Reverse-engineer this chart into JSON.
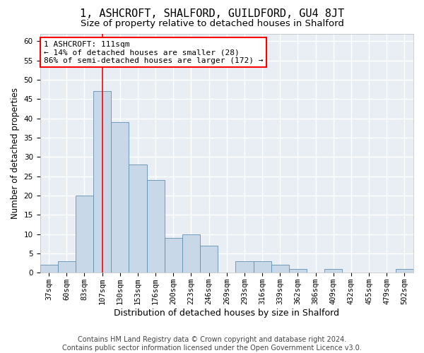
{
  "title": "1, ASHCROFT, SHALFORD, GUILDFORD, GU4 8JT",
  "subtitle": "Size of property relative to detached houses in Shalford",
  "xlabel": "Distribution of detached houses by size in Shalford",
  "ylabel": "Number of detached properties",
  "bar_color": "#c8d8e8",
  "bar_edge_color": "#6090b0",
  "background_color": "#e8eef4",
  "grid_color": "white",
  "categories": [
    "37sqm",
    "60sqm",
    "83sqm",
    "107sqm",
    "130sqm",
    "153sqm",
    "176sqm",
    "200sqm",
    "223sqm",
    "246sqm",
    "269sqm",
    "293sqm",
    "316sqm",
    "339sqm",
    "362sqm",
    "386sqm",
    "409sqm",
    "432sqm",
    "455sqm",
    "479sqm",
    "502sqm"
  ],
  "values": [
    2,
    3,
    20,
    47,
    39,
    28,
    24,
    9,
    10,
    7,
    0,
    3,
    3,
    2,
    1,
    0,
    1,
    0,
    0,
    0,
    1
  ],
  "ylim": [
    0,
    62
  ],
  "yticks": [
    0,
    5,
    10,
    15,
    20,
    25,
    30,
    35,
    40,
    45,
    50,
    55,
    60
  ],
  "marker_bin_index": 3,
  "annotation_line1": "1 ASHCROFT: 111sqm",
  "annotation_line2": "← 14% of detached houses are smaller (28)",
  "annotation_line3": "86% of semi-detached houses are larger (172) →",
  "annotation_box_color": "white",
  "annotation_border_color": "red",
  "footer_line1": "Contains HM Land Registry data © Crown copyright and database right 2024.",
  "footer_line2": "Contains public sector information licensed under the Open Government Licence v3.0.",
  "title_fontsize": 11,
  "subtitle_fontsize": 9.5,
  "xlabel_fontsize": 9,
  "ylabel_fontsize": 8.5,
  "tick_fontsize": 7.5,
  "annotation_fontsize": 8,
  "footer_fontsize": 7
}
